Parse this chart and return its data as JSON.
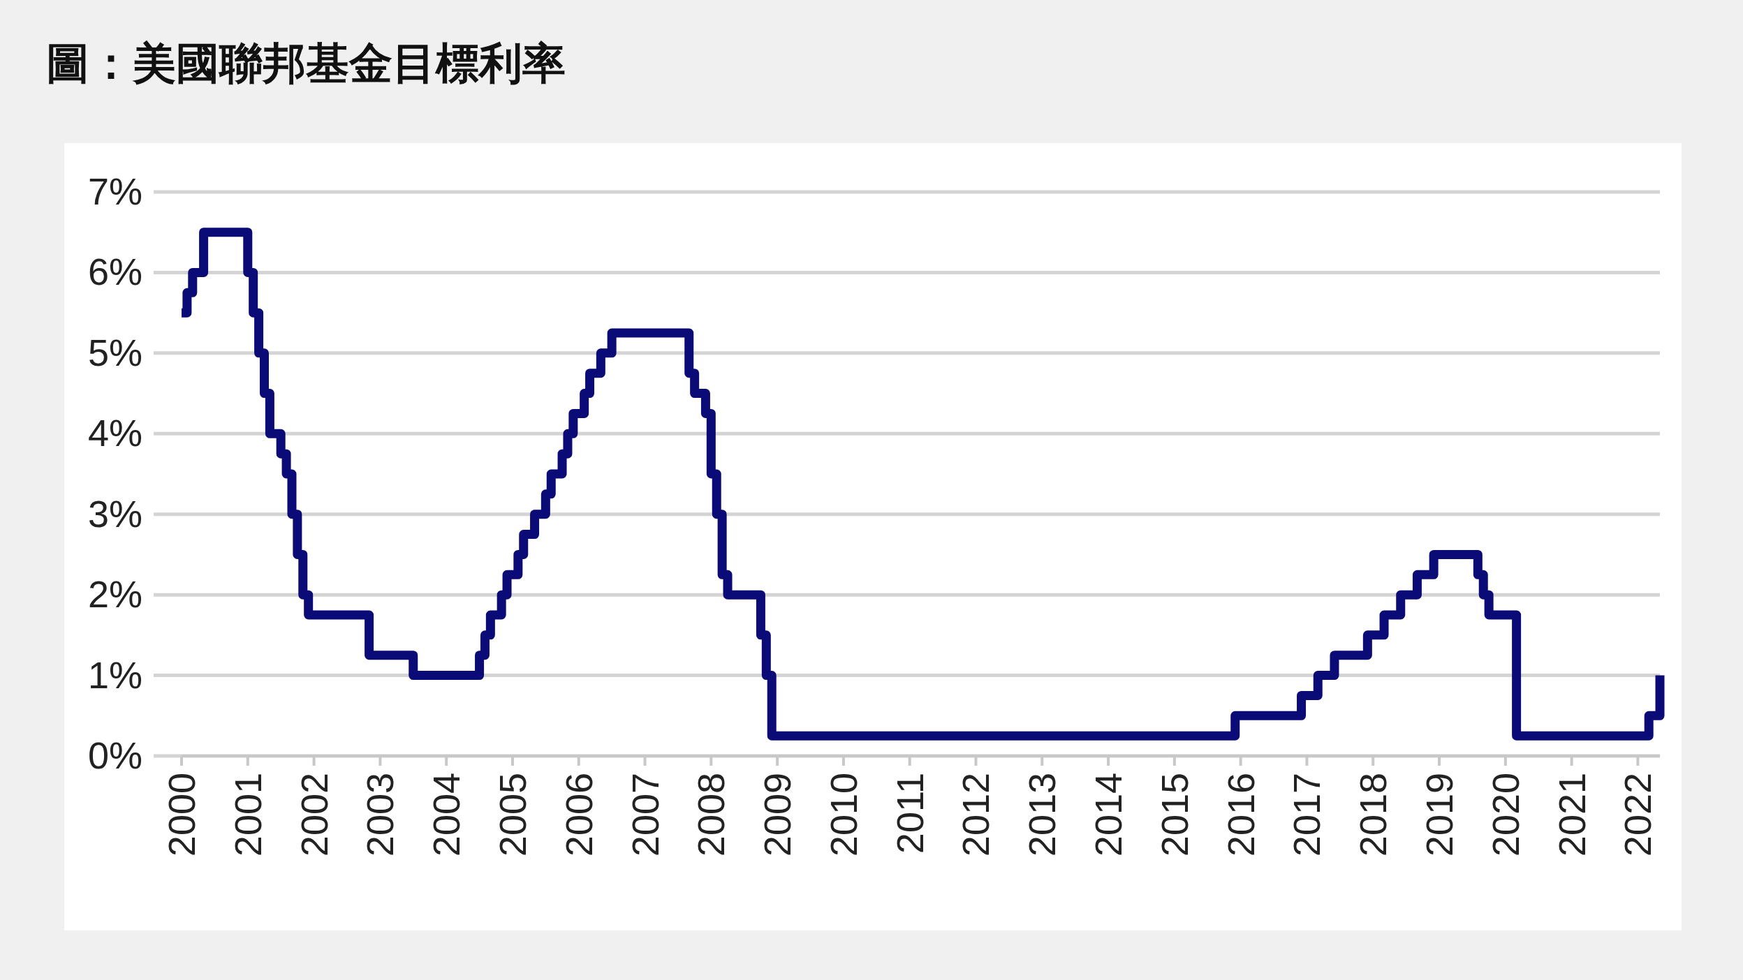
{
  "chart_data": {
    "type": "step",
    "title": "圖：美國聯邦基金目標利率",
    "x": [
      "2000-01",
      "2000-02",
      "2000-03",
      "2000-05",
      "2001-01",
      "2001-02",
      "2001-03",
      "2001-04",
      "2001-05",
      "2001-07",
      "2001-08",
      "2001-09",
      "2001-10",
      "2001-11",
      "2001-12",
      "2002-11",
      "2003-07",
      "2004-07",
      "2004-08",
      "2004-09",
      "2004-11",
      "2004-12",
      "2005-02",
      "2005-03",
      "2005-05",
      "2005-07",
      "2005-08",
      "2005-10",
      "2005-11",
      "2005-12",
      "2006-02",
      "2006-03",
      "2006-05",
      "2006-07",
      "2007-09",
      "2007-10",
      "2007-12",
      "2008-01",
      "2008-02",
      "2008-03",
      "2008-04",
      "2008-10",
      "2008-11",
      "2008-12",
      "2015-12",
      "2016-12",
      "2017-03",
      "2017-06",
      "2017-12",
      "2018-03",
      "2018-06",
      "2018-09",
      "2018-12",
      "2019-08",
      "2019-09",
      "2019-10",
      "2020-03",
      "2022-03",
      "2022-05"
    ],
    "values": [
      5.5,
      5.75,
      6.0,
      6.5,
      6.0,
      5.5,
      5.0,
      4.5,
      4.0,
      3.75,
      3.5,
      3.0,
      2.5,
      2.0,
      1.75,
      1.25,
      1.0,
      1.25,
      1.5,
      1.75,
      2.0,
      2.25,
      2.5,
      2.75,
      3.0,
      3.25,
      3.5,
      3.75,
      4.0,
      4.25,
      4.5,
      4.75,
      5.0,
      5.25,
      4.75,
      4.5,
      4.25,
      3.5,
      3.0,
      2.25,
      2.0,
      1.5,
      1.0,
      0.25,
      0.5,
      0.75,
      1.0,
      1.25,
      1.5,
      1.75,
      2.0,
      2.25,
      2.5,
      2.25,
      2.0,
      1.75,
      0.25,
      0.5,
      1.0
    ],
    "color": "#0b0b78",
    "xlim": [
      "2000-01",
      "2022-05"
    ],
    "xticks": [
      {
        "value": "2000-01",
        "label": "2000"
      },
      {
        "value": "2001-01",
        "label": "2001"
      },
      {
        "value": "2002-01",
        "label": "2002"
      },
      {
        "value": "2003-01",
        "label": "2003"
      },
      {
        "value": "2004-01",
        "label": "2004"
      },
      {
        "value": "2005-01",
        "label": "2005"
      },
      {
        "value": "2006-01",
        "label": "2006"
      },
      {
        "value": "2007-01",
        "label": "2007"
      },
      {
        "value": "2008-01",
        "label": "2008"
      },
      {
        "value": "2009-01",
        "label": "2009"
      },
      {
        "value": "2010-01",
        "label": "2010"
      },
      {
        "value": "2011-01",
        "label": "2011"
      },
      {
        "value": "2012-01",
        "label": "2012"
      },
      {
        "value": "2013-01",
        "label": "2013"
      },
      {
        "value": "2014-01",
        "label": "2014"
      },
      {
        "value": "2015-01",
        "label": "2015"
      },
      {
        "value": "2016-01",
        "label": "2016"
      },
      {
        "value": "2017-01",
        "label": "2017"
      },
      {
        "value": "2018-01",
        "label": "2018"
      },
      {
        "value": "2019-01",
        "label": "2019"
      },
      {
        "value": "2020-01",
        "label": "2020"
      },
      {
        "value": "2021-01",
        "label": "2021"
      },
      {
        "value": "2022-01",
        "label": "2022"
      }
    ],
    "ylim": [
      0,
      7
    ],
    "yticks": [
      {
        "value": 0,
        "label": "0%"
      },
      {
        "value": 1,
        "label": "1%"
      },
      {
        "value": 2,
        "label": "2%"
      },
      {
        "value": 3,
        "label": "3%"
      },
      {
        "value": 4,
        "label": "4%"
      },
      {
        "value": 5,
        "label": "5%"
      },
      {
        "value": 6,
        "label": "6%"
      },
      {
        "value": 7,
        "label": "7%"
      }
    ],
    "grid": "y"
  }
}
